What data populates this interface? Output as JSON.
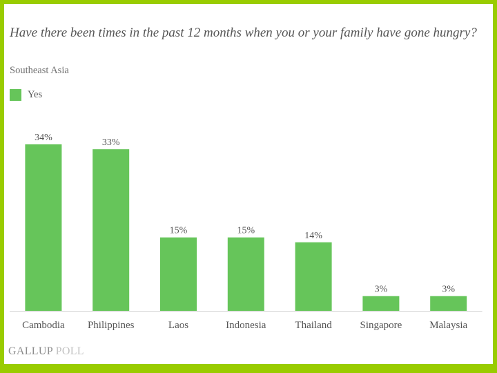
{
  "chart_data": {
    "type": "bar",
    "title": "Have there been times in the past 12 months when you or your family have gone hungry?",
    "subtitle": "Southeast Asia",
    "categories": [
      "Cambodia",
      "Philippines",
      "Laos",
      "Indonesia",
      "Thailand",
      "Singapore",
      "Malaysia"
    ],
    "series": [
      {
        "name": "Yes",
        "values": [
          34,
          33,
          15,
          15,
          14,
          3,
          3
        ],
        "color": "#66c55a"
      }
    ],
    "data_labels": [
      "34%",
      "33%",
      "15%",
      "15%",
      "14%",
      "3%",
      "3%"
    ],
    "ylim": [
      0,
      34
    ],
    "grid": false,
    "legend": "top-left"
  },
  "branding": {
    "primary": "GALLUP",
    "secondary": "POLL"
  },
  "colors": {
    "frame": "#99cc00",
    "bar": "#66c55a",
    "axis": "#cfcfcf"
  }
}
